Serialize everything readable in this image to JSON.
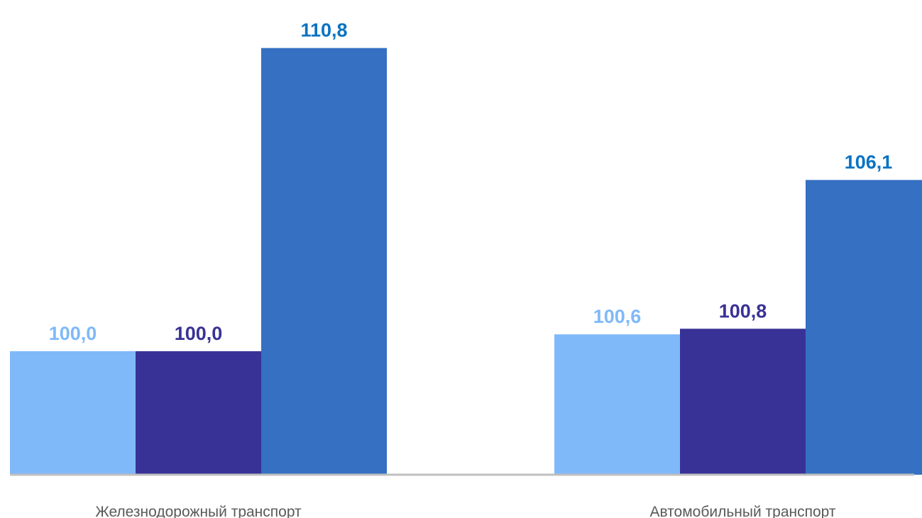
{
  "chart_data": {
    "type": "bar",
    "title": "",
    "xlabel": "",
    "ylabel": "",
    "categories": [
      "Железнодорожный транспорт",
      "Автомобильный транспорт"
    ],
    "series": [
      {
        "values": [
          100.0,
          100.6
        ],
        "labels": [
          "100,0",
          "100,6"
        ],
        "color": "#7fb9fa",
        "label_color": "#7fb9fa"
      },
      {
        "values": [
          100.0,
          100.8
        ],
        "labels": [
          "100,0",
          "100,8"
        ],
        "color": "#383296",
        "label_color": "#383296"
      },
      {
        "values": [
          110.8,
          106.1
        ],
        "labels": [
          "110,8",
          "106,1"
        ],
        "color": "#3570c2",
        "label_color": "#0a73c2"
      }
    ],
    "ylim": [
      95.6,
      111.5
    ],
    "grid": false,
    "legend": "none",
    "axis_color": "#bfbfbf"
  }
}
